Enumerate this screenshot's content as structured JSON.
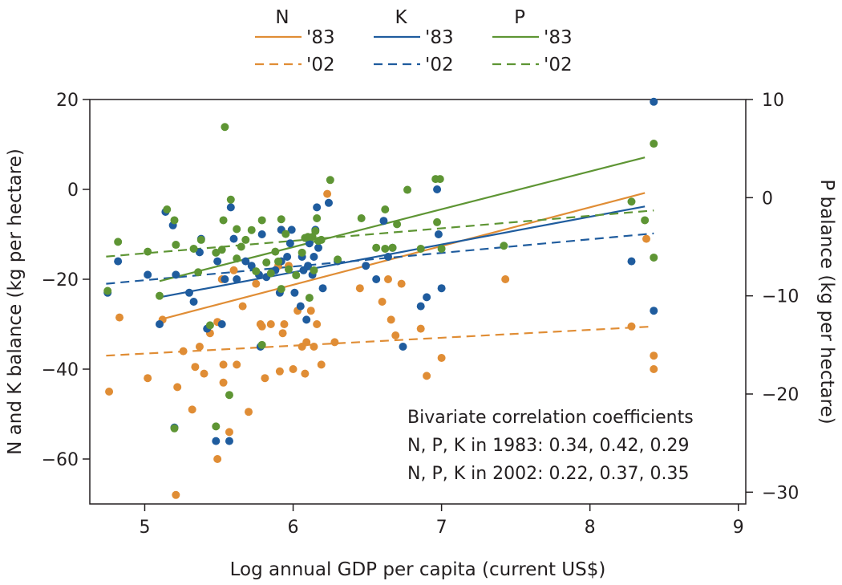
{
  "chart_data": {
    "type": "scatter",
    "title": "",
    "xlabel": "Log annual GDP per capita (current US$)",
    "ylabel_left": "N and K balance (kg per hectare)",
    "ylabel_right": "P balance (kg per hectare)",
    "xlim": [
      4.63,
      9.05
    ],
    "ylim_left": [
      -70,
      20
    ],
    "ylim_right": [
      -31.2,
      10
    ],
    "x_ticks": [
      5,
      6,
      7,
      8,
      9
    ],
    "y_ticks_left": [
      20,
      0,
      -20,
      -40,
      -60
    ],
    "y_ticks_right": [
      10,
      0,
      -10,
      -20,
      -30
    ],
    "x_tick_labels": [
      "5",
      "6",
      "7",
      "8",
      "9"
    ],
    "y_tick_labels_left": [
      "20",
      "0",
      "−20",
      "−40",
      "−60"
    ],
    "y_tick_labels_right": [
      "10",
      "0",
      "−10",
      "−20",
      "−30"
    ],
    "grid": false,
    "colors": {
      "N": "#e08d35",
      "K": "#1f5c9e",
      "P": "#5e9534"
    },
    "legend": {
      "position": "top",
      "groups": [
        {
          "nutrient": "N",
          "items": [
            "'83",
            "'02"
          ]
        },
        {
          "nutrient": "K",
          "items": [
            "'83",
            "'02"
          ]
        },
        {
          "nutrient": "P",
          "items": [
            "'83",
            "'02"
          ]
        }
      ]
    },
    "annotation": {
      "lines": [
        "Bivariate correlation coefficients",
        "N, P, K in 1983: 0.34, 0.42, 0.29",
        "N, P, K in 2002: 0.22, 0.37, 0.35"
      ],
      "position": "bottom-right"
    },
    "series": [
      {
        "name": "N",
        "axis": "left",
        "points": [
          [
            4.76,
            -45
          ],
          [
            4.83,
            -28.5
          ],
          [
            5.02,
            -42
          ],
          [
            5.12,
            -29
          ],
          [
            5.22,
            -44
          ],
          [
            5.21,
            -68
          ],
          [
            5.26,
            -36
          ],
          [
            5.32,
            -49
          ],
          [
            5.34,
            -39.5
          ],
          [
            5.37,
            -35
          ],
          [
            5.4,
            -41
          ],
          [
            5.44,
            -32
          ],
          [
            5.49,
            -60
          ],
          [
            5.49,
            -29.5
          ],
          [
            5.52,
            -20
          ],
          [
            5.53,
            -43
          ],
          [
            5.53,
            -39
          ],
          [
            5.57,
            -54
          ],
          [
            5.6,
            -18
          ],
          [
            5.62,
            -39
          ],
          [
            5.66,
            -26
          ],
          [
            5.7,
            -49.5
          ],
          [
            5.75,
            -21
          ],
          [
            5.78,
            -30
          ],
          [
            5.79,
            -30.5
          ],
          [
            5.81,
            -42
          ],
          [
            5.85,
            -30
          ],
          [
            5.9,
            -17
          ],
          [
            5.91,
            -40.5
          ],
          [
            5.92,
            -9
          ],
          [
            5.93,
            -32
          ],
          [
            5.94,
            -30
          ],
          [
            5.97,
            -17
          ],
          [
            6.0,
            -40
          ],
          [
            6.03,
            -27
          ],
          [
            6.06,
            -35
          ],
          [
            6.08,
            -41
          ],
          [
            6.09,
            -34
          ],
          [
            6.12,
            -27
          ],
          [
            6.14,
            -35
          ],
          [
            6.16,
            -30
          ],
          [
            6.19,
            -39
          ],
          [
            6.23,
            -1
          ],
          [
            6.28,
            -34
          ],
          [
            6.45,
            -22
          ],
          [
            6.6,
            -25
          ],
          [
            6.64,
            -20
          ],
          [
            6.66,
            -29
          ],
          [
            6.69,
            -32.5
          ],
          [
            6.73,
            -21
          ],
          [
            6.86,
            -31
          ],
          [
            6.9,
            -41.5
          ],
          [
            7.0,
            -37.5
          ],
          [
            7.43,
            -20
          ],
          [
            8.28,
            -30.5
          ],
          [
            8.38,
            -11
          ],
          [
            8.43,
            -37
          ],
          [
            8.43,
            -40
          ]
        ],
        "fit_1983": [
          [
            5.1,
            -29
          ],
          [
            8.37,
            -0.8
          ]
        ],
        "fit_2002": [
          [
            4.74,
            -37
          ],
          [
            8.43,
            -30.5
          ]
        ]
      },
      {
        "name": "K",
        "axis": "left",
        "points": [
          [
            4.75,
            -23
          ],
          [
            4.82,
            -16
          ],
          [
            5.02,
            -19
          ],
          [
            5.1,
            -30
          ],
          [
            5.14,
            -5
          ],
          [
            5.19,
            -8
          ],
          [
            5.2,
            -53
          ],
          [
            5.21,
            -19
          ],
          [
            5.3,
            -23
          ],
          [
            5.33,
            -25
          ],
          [
            5.37,
            -14
          ],
          [
            5.38,
            -11
          ],
          [
            5.42,
            -31
          ],
          [
            5.48,
            -56
          ],
          [
            5.49,
            -16
          ],
          [
            5.52,
            -30
          ],
          [
            5.54,
            -20
          ],
          [
            5.57,
            -56
          ],
          [
            5.58,
            -4
          ],
          [
            5.6,
            -11
          ],
          [
            5.62,
            -20
          ],
          [
            5.68,
            -16
          ],
          [
            5.72,
            -17
          ],
          [
            5.77,
            -19
          ],
          [
            5.78,
            -35
          ],
          [
            5.79,
            -10
          ],
          [
            5.82,
            -19.5
          ],
          [
            5.88,
            -18
          ],
          [
            5.91,
            -23
          ],
          [
            5.92,
            -16
          ],
          [
            5.92,
            -9
          ],
          [
            5.96,
            -15
          ],
          [
            5.98,
            -12
          ],
          [
            5.99,
            -9
          ],
          [
            6.01,
            -23
          ],
          [
            6.05,
            -26
          ],
          [
            6.06,
            -15
          ],
          [
            6.07,
            -18
          ],
          [
            6.09,
            -29
          ],
          [
            6.1,
            -17
          ],
          [
            6.11,
            -12
          ],
          [
            6.13,
            -19
          ],
          [
            6.14,
            -15
          ],
          [
            6.15,
            -9
          ],
          [
            6.16,
            -4
          ],
          [
            6.17,
            -13
          ],
          [
            6.2,
            -22
          ],
          [
            6.24,
            -3
          ],
          [
            6.3,
            -16
          ],
          [
            6.49,
            -17
          ],
          [
            6.56,
            -20
          ],
          [
            6.61,
            -7
          ],
          [
            6.64,
            -15
          ],
          [
            6.67,
            -13
          ],
          [
            6.74,
            -35
          ],
          [
            6.86,
            -26
          ],
          [
            6.9,
            -24
          ],
          [
            6.97,
            0
          ],
          [
            6.98,
            -10
          ],
          [
            7.0,
            -22
          ],
          [
            8.28,
            -16
          ],
          [
            8.43,
            19.5
          ],
          [
            8.43,
            -27
          ]
        ],
        "fit_1983": [
          [
            5.1,
            -24
          ],
          [
            8.37,
            -3.8
          ]
        ],
        "fit_2002": [
          [
            4.74,
            -21
          ],
          [
            8.43,
            -9.8
          ]
        ]
      },
      {
        "name": "P",
        "axis": "right",
        "points": [
          [
            4.75,
            -9.5
          ],
          [
            4.82,
            -4.5
          ],
          [
            5.02,
            -5.5
          ],
          [
            5.1,
            -10
          ],
          [
            5.15,
            -1.2
          ],
          [
            5.2,
            -2.3
          ],
          [
            5.21,
            -4.8
          ],
          [
            5.2,
            -23.5
          ],
          [
            5.33,
            -5.2
          ],
          [
            5.36,
            -7.6
          ],
          [
            5.38,
            -4.3
          ],
          [
            5.44,
            -13
          ],
          [
            5.48,
            -23.3
          ],
          [
            5.48,
            -5.6
          ],
          [
            5.52,
            -5.3
          ],
          [
            5.53,
            -2.3
          ],
          [
            5.54,
            7.2
          ],
          [
            5.57,
            -20.1
          ],
          [
            5.58,
            -0.2
          ],
          [
            5.62,
            -3.2
          ],
          [
            5.62,
            -6.2
          ],
          [
            5.65,
            -5
          ],
          [
            5.68,
            -4.3
          ],
          [
            5.72,
            -3.3
          ],
          [
            5.75,
            -7.5
          ],
          [
            5.79,
            -2.3
          ],
          [
            5.79,
            -15
          ],
          [
            5.82,
            -6.6
          ],
          [
            5.85,
            -7.7
          ],
          [
            5.88,
            -5.5
          ],
          [
            5.9,
            -6.5
          ],
          [
            5.92,
            -2.2
          ],
          [
            5.92,
            -9.3
          ],
          [
            5.95,
            -3.7
          ],
          [
            5.97,
            -7.3
          ],
          [
            6.02,
            -7.9
          ],
          [
            6.06,
            -5.6
          ],
          [
            6.08,
            -4.1
          ],
          [
            6.1,
            -4
          ],
          [
            6.11,
            -10.2
          ],
          [
            6.13,
            -4
          ],
          [
            6.14,
            -7.4
          ],
          [
            6.15,
            -3.4
          ],
          [
            6.16,
            -2.1
          ],
          [
            6.17,
            -4.4
          ],
          [
            6.19,
            -4.3
          ],
          [
            6.25,
            1.8
          ],
          [
            6.3,
            -6.3
          ],
          [
            6.46,
            -2.1
          ],
          [
            6.56,
            -5.1
          ],
          [
            6.62,
            -1.2
          ],
          [
            6.62,
            -5.2
          ],
          [
            6.67,
            -5.1
          ],
          [
            6.7,
            -2.7
          ],
          [
            6.77,
            0.8
          ],
          [
            6.86,
            -5.2
          ],
          [
            6.96,
            1.9
          ],
          [
            6.97,
            -2.5
          ],
          [
            6.99,
            1.9
          ],
          [
            7.0,
            -5.2
          ],
          [
            7.42,
            -4.9
          ],
          [
            8.28,
            -0.4
          ],
          [
            8.37,
            -2.3
          ],
          [
            8.43,
            5.5
          ],
          [
            8.43,
            -6.1
          ]
        ],
        "fit_1983": [
          [
            5.1,
            -8.5
          ],
          [
            8.37,
            4.1
          ]
        ],
        "fit_2002": [
          [
            4.74,
            -6
          ],
          [
            8.43,
            -1.3
          ]
        ]
      }
    ]
  }
}
